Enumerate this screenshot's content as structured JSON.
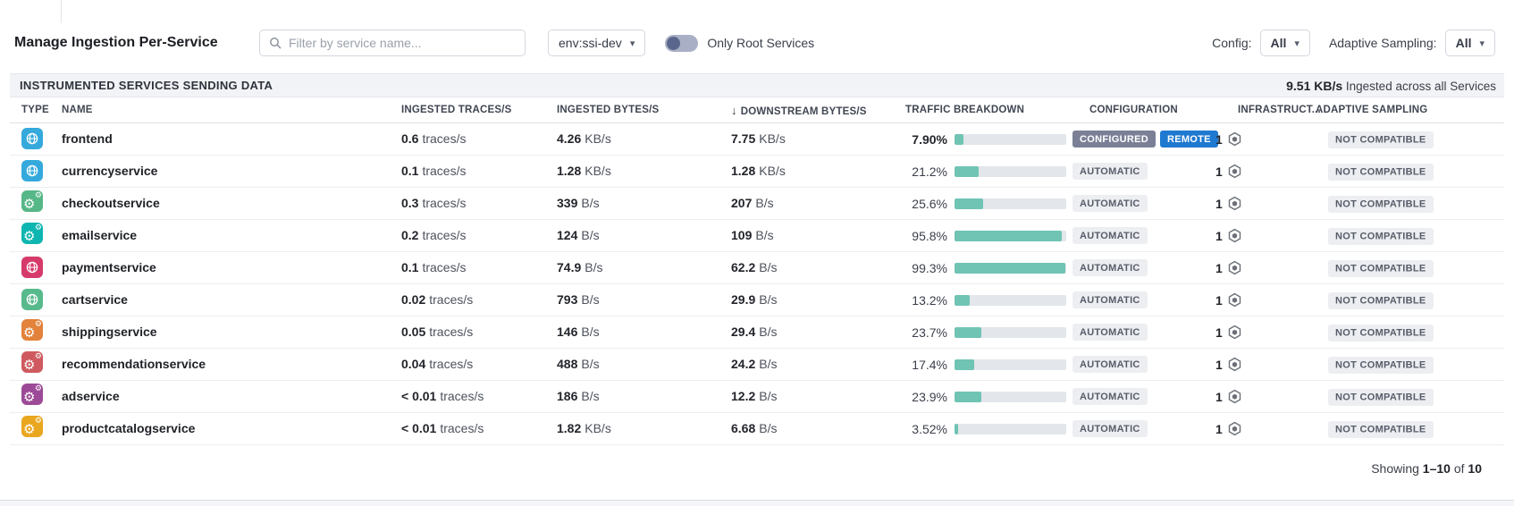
{
  "icons": {
    "caret": "▾",
    "sort_desc": "↓",
    "gear": "⚙"
  },
  "colors": {
    "bar_fill": "#6fc4b4",
    "badge_remote": "#1f79d0",
    "badge_configured": "#7b8096"
  },
  "toolbar": {
    "title": "Manage Ingestion Per-Service",
    "search_placeholder": "Filter by service name...",
    "env_value": "env:ssi-dev",
    "toggle_label": "Only Root Services",
    "config_label": "Config:",
    "config_value": "All",
    "adaptive_label": "Adaptive Sampling:",
    "adaptive_value": "All"
  },
  "summary": {
    "title": "INSTRUMENTED SERVICES SENDING DATA",
    "total_rate": "9.51 KB/s",
    "total_suffix": " Ingested across all Services"
  },
  "table": {
    "columns": [
      "TYPE",
      "NAME",
      "INGESTED TRACES/S",
      "INGESTED BYTES/S",
      "DOWNSTREAM BYTES/S",
      "TRAFFIC BREAKDOWN",
      "CONFIGURATION",
      "INFRASTRUCT...",
      "ADAPTIVE SAMPLING"
    ],
    "sort_column": "DOWNSTREAM BYTES/S",
    "rows": [
      {
        "name": "frontend",
        "icon": "globe",
        "icon_color": "#35a9dc",
        "traces": "0.6",
        "traces_unit": "traces/s",
        "bytes": "4.26",
        "bytes_unit": "KB/s",
        "downstream": "7.75",
        "downstream_unit": "KB/s",
        "traffic_pct": "7.90%",
        "traffic_pct_num": 7.9,
        "pct_bold": true,
        "config_badges": [
          "CONFIGURED",
          "REMOTE"
        ],
        "infra_count": "1",
        "adaptive": "NOT COMPATIBLE"
      },
      {
        "name": "currencyservice",
        "icon": "globe",
        "icon_color": "#35a9dc",
        "traces": "0.1",
        "traces_unit": "traces/s",
        "bytes": "1.28",
        "bytes_unit": "KB/s",
        "downstream": "1.28",
        "downstream_unit": "KB/s",
        "traffic_pct": "21.2%",
        "traffic_pct_num": 21.2,
        "pct_bold": false,
        "config_badges": [
          "AUTOMATIC"
        ],
        "infra_count": "1",
        "adaptive": "NOT COMPATIBLE"
      },
      {
        "name": "checkoutservice",
        "icon": "gears",
        "icon_color": "#56b787",
        "traces": "0.3",
        "traces_unit": "traces/s",
        "bytes": "339",
        "bytes_unit": "B/s",
        "downstream": "207",
        "downstream_unit": "B/s",
        "traffic_pct": "25.6%",
        "traffic_pct_num": 25.6,
        "pct_bold": false,
        "config_badges": [
          "AUTOMATIC"
        ],
        "infra_count": "1",
        "adaptive": "NOT COMPATIBLE"
      },
      {
        "name": "emailservice",
        "icon": "gears",
        "icon_color": "#0fb5b0",
        "traces": "0.2",
        "traces_unit": "traces/s",
        "bytes": "124",
        "bytes_unit": "B/s",
        "downstream": "109",
        "downstream_unit": "B/s",
        "traffic_pct": "95.8%",
        "traffic_pct_num": 95.8,
        "pct_bold": false,
        "config_badges": [
          "AUTOMATIC"
        ],
        "infra_count": "1",
        "adaptive": "NOT COMPATIBLE"
      },
      {
        "name": "paymentservice",
        "icon": "globe",
        "icon_color": "#d63a6b",
        "traces": "0.1",
        "traces_unit": "traces/s",
        "bytes": "74.9",
        "bytes_unit": "B/s",
        "downstream": "62.2",
        "downstream_unit": "B/s",
        "traffic_pct": "99.3%",
        "traffic_pct_num": 99.3,
        "pct_bold": false,
        "config_badges": [
          "AUTOMATIC"
        ],
        "infra_count": "1",
        "adaptive": "NOT COMPATIBLE"
      },
      {
        "name": "cartservice",
        "icon": "globe",
        "icon_color": "#58ba8c",
        "traces": "0.02",
        "traces_unit": "traces/s",
        "bytes": "793",
        "bytes_unit": "B/s",
        "downstream": "29.9",
        "downstream_unit": "B/s",
        "traffic_pct": "13.2%",
        "traffic_pct_num": 13.2,
        "pct_bold": false,
        "config_badges": [
          "AUTOMATIC"
        ],
        "infra_count": "1",
        "adaptive": "NOT COMPATIBLE"
      },
      {
        "name": "shippingservice",
        "icon": "gears",
        "icon_color": "#e2823b",
        "traces": "0.05",
        "traces_unit": "traces/s",
        "bytes": "146",
        "bytes_unit": "B/s",
        "downstream": "29.4",
        "downstream_unit": "B/s",
        "traffic_pct": "23.7%",
        "traffic_pct_num": 23.7,
        "pct_bold": false,
        "config_badges": [
          "AUTOMATIC"
        ],
        "infra_count": "1",
        "adaptive": "NOT COMPATIBLE"
      },
      {
        "name": "recommendationservice",
        "icon": "gears",
        "icon_color": "#ce5a5f",
        "traces": "0.04",
        "traces_unit": "traces/s",
        "bytes": "488",
        "bytes_unit": "B/s",
        "downstream": "24.2",
        "downstream_unit": "B/s",
        "traffic_pct": "17.4%",
        "traffic_pct_num": 17.4,
        "pct_bold": false,
        "config_badges": [
          "AUTOMATIC"
        ],
        "infra_count": "1",
        "adaptive": "NOT COMPATIBLE"
      },
      {
        "name": "adservice",
        "icon": "gears",
        "icon_color": "#9c4a97",
        "traces": "< 0.01",
        "traces_unit": "traces/s",
        "bytes": "186",
        "bytes_unit": "B/s",
        "downstream": "12.2",
        "downstream_unit": "B/s",
        "traffic_pct": "23.9%",
        "traffic_pct_num": 23.9,
        "pct_bold": false,
        "config_badges": [
          "AUTOMATIC"
        ],
        "infra_count": "1",
        "adaptive": "NOT COMPATIBLE"
      },
      {
        "name": "productcatalogservice",
        "icon": "gears",
        "icon_color": "#e9a61f",
        "traces": "< 0.01",
        "traces_unit": "traces/s",
        "bytes": "1.82",
        "bytes_unit": "KB/s",
        "downstream": "6.68",
        "downstream_unit": "B/s",
        "traffic_pct": "3.52%",
        "traffic_pct_num": 3.52,
        "pct_bold": false,
        "config_badges": [
          "AUTOMATIC"
        ],
        "infra_count": "1",
        "adaptive": "NOT COMPATIBLE"
      }
    ]
  },
  "footer": {
    "prefix": "Showing",
    "range": "1–10",
    "middle": "of",
    "total": "10"
  }
}
